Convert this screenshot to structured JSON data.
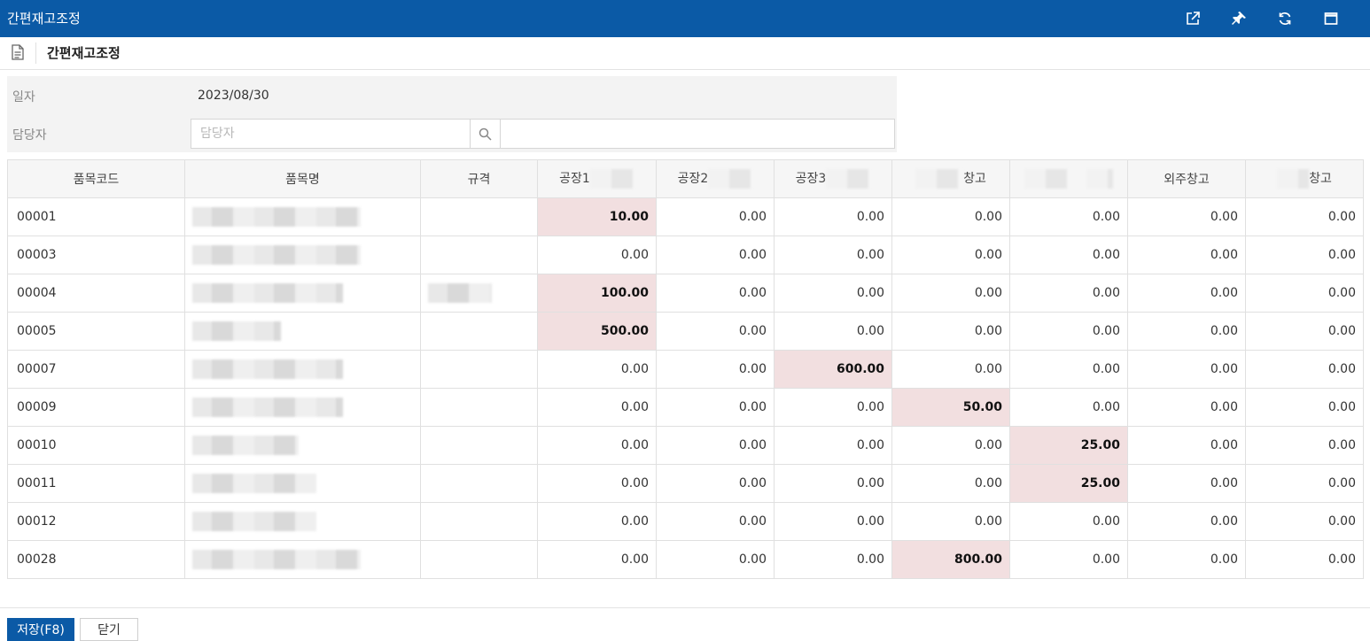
{
  "window": {
    "title": "간편재고조정",
    "icons": [
      "external-link-icon",
      "pin-icon",
      "refresh-icon",
      "maximize-icon"
    ]
  },
  "page": {
    "title": "간편재고조정"
  },
  "form": {
    "date_label": "일자",
    "date_value": "2023/08/30",
    "manager_label": "담당자",
    "manager_placeholder": "담당자"
  },
  "grid": {
    "columns": [
      "품목코드",
      "품목명",
      "규격",
      "공장1",
      "공장2",
      "공장3",
      "창고",
      "",
      "외주창고",
      "창고"
    ],
    "rows": [
      {
        "code": "00001",
        "values": [
          "10.00",
          "0.00",
          "0.00",
          "0.00",
          "0.00",
          "0.00",
          "0.00"
        ],
        "highlight": 0
      },
      {
        "code": "00003",
        "values": [
          "0.00",
          "0.00",
          "0.00",
          "0.00",
          "0.00",
          "0.00",
          "0.00"
        ],
        "highlight": -1
      },
      {
        "code": "00004",
        "values": [
          "100.00",
          "0.00",
          "0.00",
          "0.00",
          "0.00",
          "0.00",
          "0.00"
        ],
        "highlight": 0
      },
      {
        "code": "00005",
        "values": [
          "500.00",
          "0.00",
          "0.00",
          "0.00",
          "0.00",
          "0.00",
          "0.00"
        ],
        "highlight": 0
      },
      {
        "code": "00007",
        "values": [
          "0.00",
          "0.00",
          "600.00",
          "0.00",
          "0.00",
          "0.00",
          "0.00"
        ],
        "highlight": 2
      },
      {
        "code": "00009",
        "values": [
          "0.00",
          "0.00",
          "0.00",
          "50.00",
          "0.00",
          "0.00",
          "0.00"
        ],
        "highlight": 3
      },
      {
        "code": "00010",
        "values": [
          "0.00",
          "0.00",
          "0.00",
          "0.00",
          "25.00",
          "0.00",
          "0.00"
        ],
        "highlight": 4
      },
      {
        "code": "00011",
        "values": [
          "0.00",
          "0.00",
          "0.00",
          "0.00",
          "25.00",
          "0.00",
          "0.00"
        ],
        "highlight": 4
      },
      {
        "code": "00012",
        "values": [
          "0.00",
          "0.00",
          "0.00",
          "0.00",
          "0.00",
          "0.00",
          "0.00"
        ],
        "highlight": -1
      },
      {
        "code": "00028",
        "values": [
          "0.00",
          "0.00",
          "0.00",
          "800.00",
          "0.00",
          "0.00",
          "0.00"
        ],
        "highlight": 3
      }
    ]
  },
  "footer": {
    "save_label": "저장(F8)",
    "close_label": "닫기"
  },
  "colors": {
    "titlebar": "#0b5aa6",
    "highlight_cell": "#f2dfe0"
  }
}
